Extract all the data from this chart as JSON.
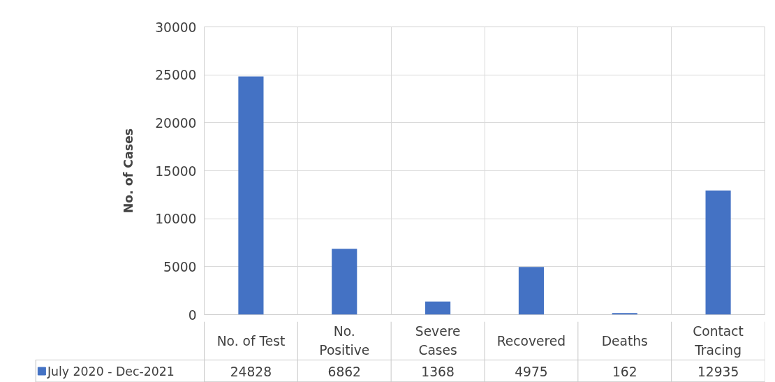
{
  "chart_data": {
    "type": "bar",
    "ylabel": "No. of Cases",
    "categories": [
      "No. of Test",
      "No.\nPositive",
      "Severe\nCases",
      "Recovered",
      "Deaths",
      "Contact\nTracing"
    ],
    "series": [
      {
        "name": "July 2020 - Dec-2021",
        "color": "#4472c4",
        "values": [
          24828,
          6862,
          1368,
          4975,
          162,
          12935
        ]
      }
    ],
    "ylim": [
      0,
      30000
    ],
    "yticks": [
      0,
      5000,
      10000,
      15000,
      20000,
      25000,
      30000
    ],
    "grid": true,
    "legend": "bottom",
    "data_labels": true
  }
}
